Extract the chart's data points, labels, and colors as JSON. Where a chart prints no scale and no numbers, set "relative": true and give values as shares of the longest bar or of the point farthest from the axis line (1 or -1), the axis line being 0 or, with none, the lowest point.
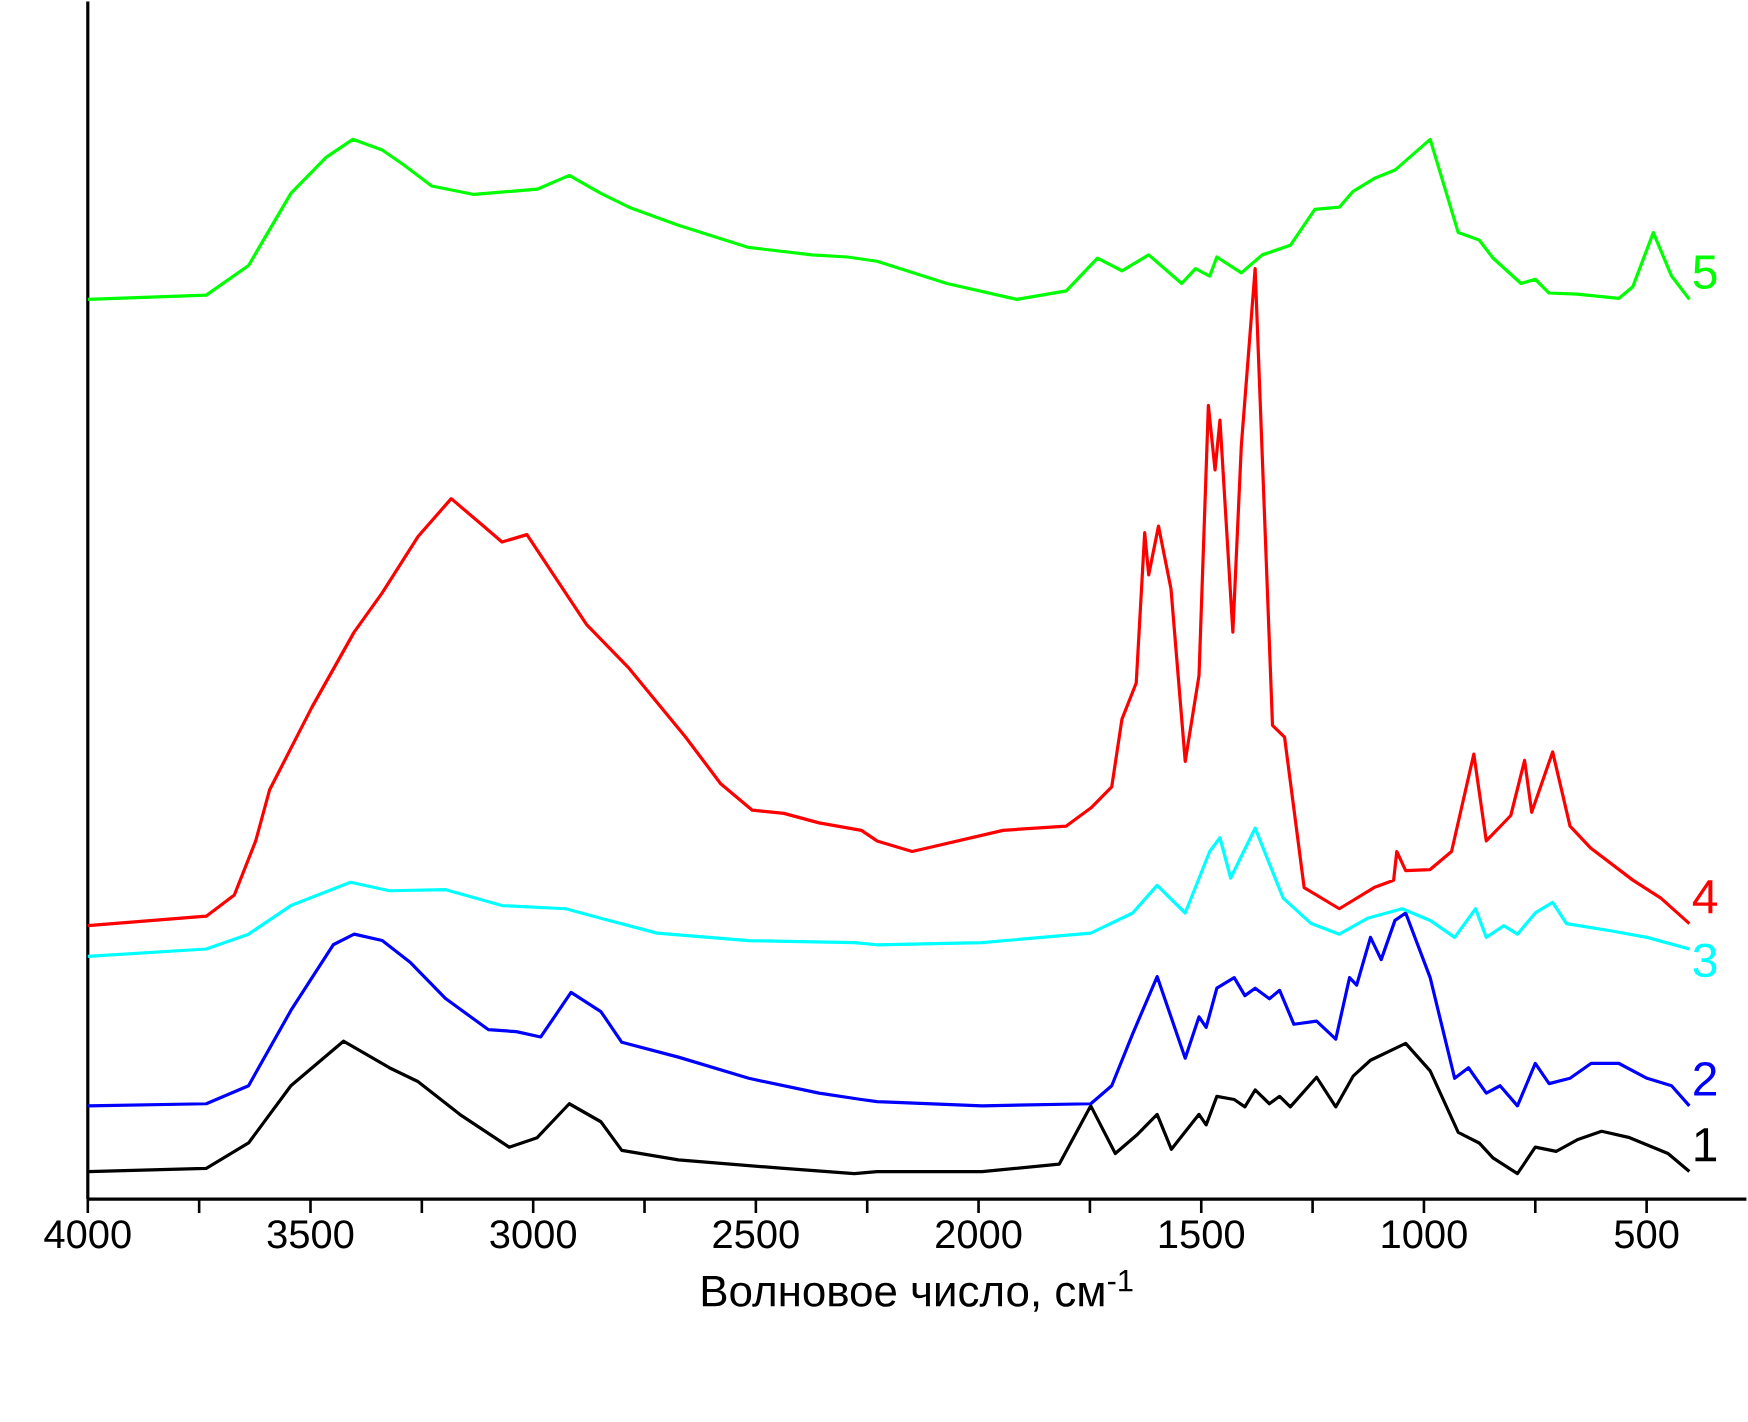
{
  "chart_data": {
    "type": "line",
    "relative": true,
    "xlabel": "Волновое число, см$^{-1}$",
    "xlim": [
      4000,
      276
    ],
    "xticks": [
      4000,
      {
        "value": 3750,
        "label": null
      },
      3500,
      {
        "value": 3250,
        "label": null
      },
      3000,
      {
        "value": 2750,
        "label": null
      },
      2500,
      {
        "value": 2250,
        "label": null
      },
      2000,
      {
        "value": 1750,
        "label": null
      },
      1500,
      {
        "value": 1250,
        "label": null
      },
      1000,
      {
        "value": 750,
        "label": null
      },
      500
    ],
    "series": [
      {
        "name": "1",
        "color": "#000000",
        "x": [
          4000,
          3734,
          3639,
          3544,
          3426,
          3323,
          3259,
          3165,
          3054,
          2991,
          2919,
          2848,
          2801,
          2674,
          2437,
          2279,
          2228,
          1992,
          1819,
          1748,
          1693,
          1646,
          1599,
          1567,
          1505,
          1489,
          1465,
          1426,
          1402,
          1379,
          1347,
          1324,
          1300,
          1241,
          1198,
          1159,
          1120,
          1041,
          986,
          923,
          876,
          845,
          790,
          750,
          703,
          656,
          601,
          538,
          452,
          404
        ],
        "values": [
          0.026,
          0.029,
          0.053,
          0.107,
          0.149,
          0.124,
          0.111,
          0.08,
          0.049,
          0.058,
          0.09,
          0.073,
          0.046,
          0.037,
          0.029,
          0.024,
          0.026,
          0.026,
          0.033,
          0.088,
          0.043,
          0.06,
          0.08,
          0.047,
          0.08,
          0.07,
          0.097,
          0.094,
          0.087,
          0.103,
          0.09,
          0.097,
          0.087,
          0.115,
          0.087,
          0.116,
          0.131,
          0.147,
          0.121,
          0.063,
          0.053,
          0.039,
          0.024,
          0.049,
          0.045,
          0.056,
          0.064,
          0.058,
          0.043,
          0.026
        ]
      },
      {
        "name": "2",
        "color": "#0000ff",
        "x": [
          4000,
          3734,
          3639,
          3544,
          3449,
          3402,
          3339,
          3275,
          3196,
          3101,
          3038,
          2983,
          2915,
          2848,
          2801,
          2674,
          2516,
          2358,
          2263,
          2228,
          1992,
          1748,
          1701,
          1654,
          1599,
          1536,
          1505,
          1489,
          1465,
          1426,
          1402,
          1379,
          1347,
          1324,
          1292,
          1241,
          1198,
          1167,
          1151,
          1120,
          1096,
          1065,
          1041,
          986,
          931,
          900,
          860,
          829,
          790,
          750,
          719,
          672,
          625,
          562,
          499,
          444,
          404
        ],
        "values": [
          0.088,
          0.09,
          0.107,
          0.178,
          0.24,
          0.25,
          0.244,
          0.223,
          0.189,
          0.16,
          0.158,
          0.153,
          0.195,
          0.177,
          0.148,
          0.134,
          0.114,
          0.1,
          0.094,
          0.092,
          0.088,
          0.09,
          0.107,
          0.156,
          0.21,
          0.133,
          0.172,
          0.162,
          0.199,
          0.209,
          0.192,
          0.199,
          0.189,
          0.197,
          0.165,
          0.168,
          0.151,
          0.209,
          0.202,
          0.247,
          0.226,
          0.263,
          0.27,
          0.209,
          0.114,
          0.124,
          0.1,
          0.107,
          0.088,
          0.128,
          0.109,
          0.114,
          0.128,
          0.128,
          0.114,
          0.107,
          0.088
        ]
      },
      {
        "name": "3",
        "color": "#00ffff",
        "x": [
          4000,
          3734,
          3639,
          3544,
          3410,
          3323,
          3196,
          3070,
          2927,
          2848,
          2722,
          2516,
          2279,
          2228,
          1992,
          1748,
          1654,
          1599,
          1536,
          1481,
          1458,
          1434,
          1379,
          1316,
          1253,
          1190,
          1127,
          1049,
          986,
          931,
          884,
          860,
          821,
          790,
          750,
          711,
          680,
          578,
          499,
          404
        ],
        "values": [
          0.229,
          0.236,
          0.25,
          0.277,
          0.299,
          0.291,
          0.292,
          0.277,
          0.274,
          0.265,
          0.251,
          0.244,
          0.242,
          0.24,
          0.242,
          0.251,
          0.27,
          0.296,
          0.27,
          0.328,
          0.341,
          0.303,
          0.35,
          0.284,
          0.26,
          0.25,
          0.265,
          0.274,
          0.263,
          0.247,
          0.274,
          0.247,
          0.258,
          0.25,
          0.27,
          0.28,
          0.26,
          0.253,
          0.247,
          0.236
        ]
      },
      {
        "name": "4",
        "color": "#ff0000",
        "x": [
          4000,
          3734,
          3671,
          3623,
          3592,
          3497,
          3402,
          3339,
          3259,
          3184,
          3117,
          3070,
          3014,
          2943,
          2880,
          2785,
          2658,
          2579,
          2508,
          2437,
          2358,
          2263,
          2228,
          2149,
          1945,
          1803,
          1748,
          1701,
          1678,
          1646,
          1627,
          1618,
          1596,
          1568,
          1536,
          1505,
          1484,
          1469,
          1458,
          1429,
          1410,
          1379,
          1340,
          1313,
          1269,
          1190,
          1112,
          1068,
          1061,
          1041,
          986,
          938,
          888,
          860,
          805,
          774,
          758,
          711,
          672,
          625,
          531,
          468,
          404
        ],
        "values": [
          0.258,
          0.267,
          0.287,
          0.338,
          0.386,
          0.464,
          0.535,
          0.572,
          0.625,
          0.661,
          0.637,
          0.62,
          0.627,
          0.582,
          0.542,
          0.501,
          0.436,
          0.392,
          0.367,
          0.364,
          0.355,
          0.348,
          0.338,
          0.328,
          0.348,
          0.352,
          0.369,
          0.389,
          0.453,
          0.487,
          0.629,
          0.589,
          0.635,
          0.576,
          0.413,
          0.494,
          0.749,
          0.688,
          0.735,
          0.535,
          0.711,
          0.878,
          0.447,
          0.436,
          0.294,
          0.274,
          0.294,
          0.301,
          0.328,
          0.31,
          0.311,
          0.328,
          0.42,
          0.338,
          0.362,
          0.414,
          0.365,
          0.422,
          0.352,
          0.331,
          0.301,
          0.284,
          0.26
        ]
      },
      {
        "name": "5",
        "color": "#00ff00",
        "x": [
          4000,
          3734,
          3639,
          3544,
          3465,
          3405,
          3339,
          3291,
          3228,
          3133,
          2991,
          2919,
          2848,
          2785,
          2674,
          2516,
          2374,
          2294,
          2228,
          2071,
          1914,
          1803,
          1733,
          1678,
          1618,
          1544,
          1513,
          1481,
          1465,
          1410,
          1363,
          1300,
          1245,
          1190,
          1159,
          1112,
          1065,
          986,
          923,
          876,
          845,
          782,
          750,
          719,
          656,
          562,
          531,
          485,
          444,
          404
        ],
        "values": [
          0.849,
          0.853,
          0.881,
          0.949,
          0.983,
          1.0,
          0.99,
          0.976,
          0.956,
          0.948,
          0.953,
          0.966,
          0.949,
          0.936,
          0.919,
          0.898,
          0.891,
          0.889,
          0.885,
          0.864,
          0.849,
          0.857,
          0.888,
          0.876,
          0.891,
          0.864,
          0.878,
          0.871,
          0.889,
          0.874,
          0.891,
          0.9,
          0.934,
          0.936,
          0.951,
          0.963,
          0.971,
          1.0,
          0.912,
          0.905,
          0.888,
          0.864,
          0.868,
          0.855,
          0.854,
          0.85,
          0.861,
          0.912,
          0.871,
          0.849
        ]
      }
    ]
  }
}
